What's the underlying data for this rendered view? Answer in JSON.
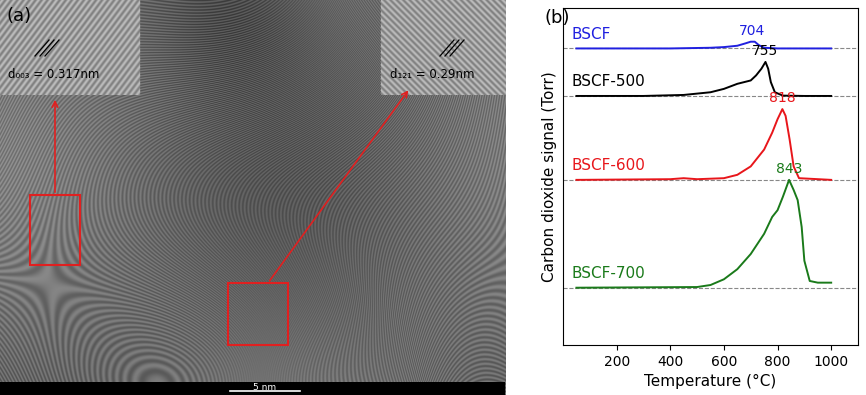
{
  "image_panel": {
    "label": "(a)",
    "insets": [
      {
        "text": "d₀₀₃ = 0.317nm"
      },
      {
        "text": "d₁₂₁ = 0.29nm"
      }
    ],
    "scale_bar": "5 nm"
  },
  "chart_data": {
    "type": "line",
    "panel_label": "(b)",
    "x_label": "Temperature (°C)",
    "y_label": "Carbon dioxide signal (Torr)",
    "xlim": [
      0,
      1100
    ],
    "xticks": [
      200,
      400,
      600,
      800,
      1000
    ],
    "ylim": [
      0,
      10
    ],
    "yticks": [],
    "tick_labels": "x",
    "series": [
      {
        "name": "BSCF",
        "color": "#2020e0",
        "baseline": 8.8,
        "peak": 704,
        "x": [
          50,
          400,
          550,
          600,
          650,
          680,
          700,
          715,
          730,
          750,
          800,
          1000
        ],
        "values": [
          8.8,
          8.8,
          8.82,
          8.84,
          8.88,
          8.95,
          9.0,
          9.0,
          8.9,
          8.82,
          8.8,
          8.8
        ]
      },
      {
        "name": "BSCF-500",
        "color": "#000000",
        "baseline": 7.39,
        "peak": 755,
        "x": [
          50,
          300,
          450,
          550,
          600,
          650,
          700,
          720,
          740,
          755,
          765,
          775,
          790,
          820,
          900,
          1000
        ],
        "values": [
          7.39,
          7.39,
          7.42,
          7.5,
          7.6,
          7.75,
          7.85,
          8.0,
          8.2,
          8.4,
          8.2,
          7.8,
          7.5,
          7.4,
          7.39,
          7.39
        ]
      },
      {
        "name": "BSCF-600",
        "color": "#e8161b",
        "baseline": 4.9,
        "peak": 818,
        "x": [
          50,
          400,
          450,
          500,
          600,
          650,
          700,
          750,
          780,
          800,
          818,
          830,
          845,
          860,
          880,
          1000
        ],
        "values": [
          4.9,
          4.92,
          4.95,
          4.92,
          4.95,
          5.05,
          5.3,
          5.8,
          6.3,
          6.7,
          7.0,
          6.8,
          6.1,
          5.3,
          4.95,
          4.9
        ]
      },
      {
        "name": "BSCF-700",
        "color": "#1a7a1a",
        "baseline": 1.7,
        "peak": 843,
        "x": [
          50,
          500,
          550,
          600,
          650,
          700,
          750,
          780,
          800,
          820,
          843,
          860,
          875,
          890,
          900,
          920,
          950,
          1000
        ],
        "values": [
          1.7,
          1.72,
          1.78,
          1.95,
          2.25,
          2.7,
          3.3,
          3.8,
          4.0,
          4.4,
          4.9,
          4.6,
          4.3,
          3.5,
          2.5,
          1.9,
          1.85,
          1.85
        ]
      }
    ]
  }
}
